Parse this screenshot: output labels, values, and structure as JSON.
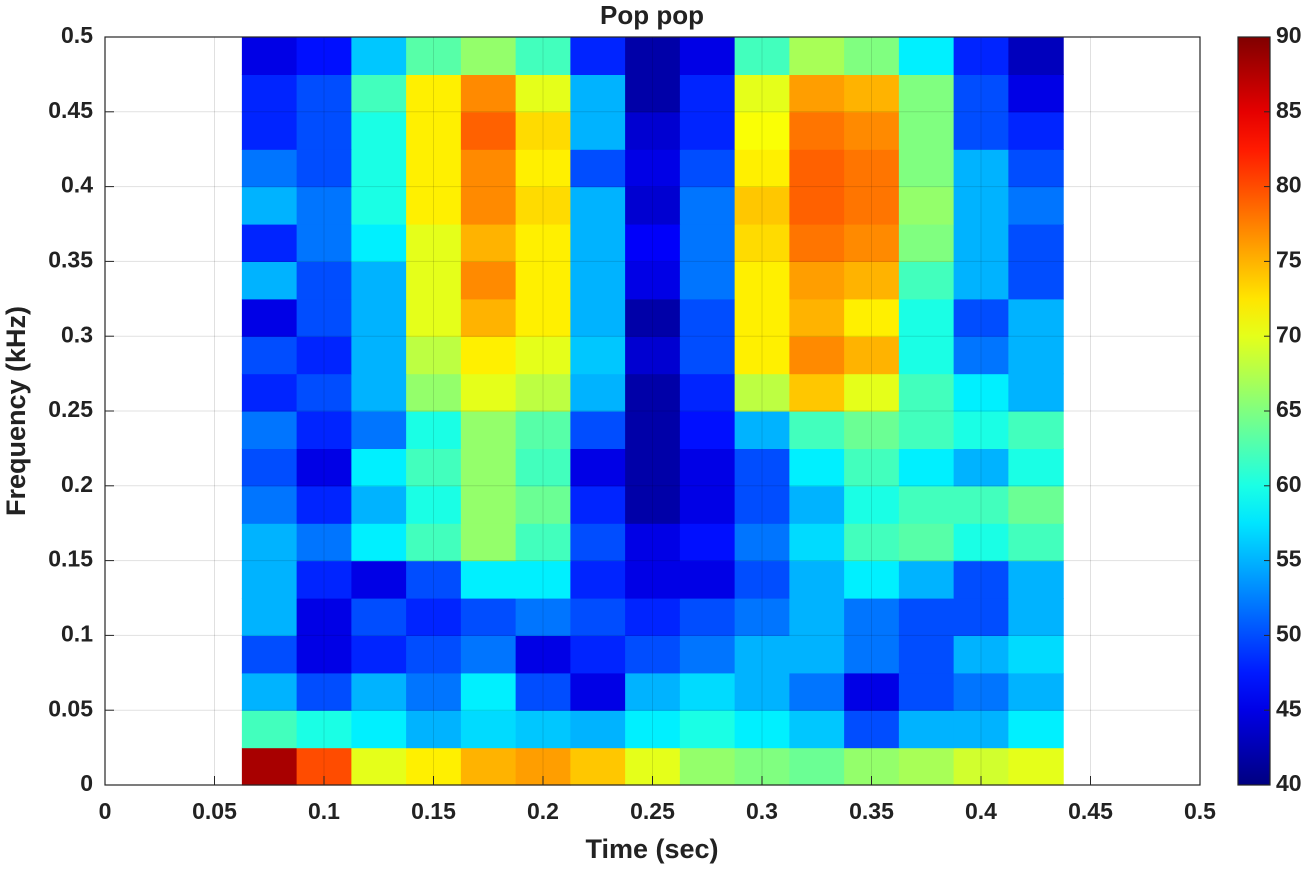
{
  "chart_data": {
    "type": "heatmap",
    "title": "Pop pop",
    "x_label": "Time (sec)",
    "y_label": "Frequency (kHz)",
    "x": [
      0.075,
      0.1,
      0.125,
      0.15,
      0.175,
      0.2,
      0.225,
      0.25,
      0.275,
      0.3,
      0.325,
      0.35,
      0.375,
      0.4,
      0.425
    ],
    "y": [
      0.0125,
      0.0375,
      0.0625,
      0.0875,
      0.1125,
      0.1375,
      0.1625,
      0.1875,
      0.2125,
      0.2375,
      0.2625,
      0.2875,
      0.3125,
      0.3375,
      0.3625,
      0.3875,
      0.4125,
      0.4375,
      0.4625,
      0.4875
    ],
    "z": [
      [
        88,
        80,
        70,
        72,
        75,
        76,
        74,
        70,
        66,
        65,
        64,
        66,
        67,
        69,
        70
      ],
      [
        62,
        60,
        58,
        55,
        57,
        56,
        55,
        58,
        60,
        58,
        56,
        50,
        55,
        55,
        58
      ],
      [
        55,
        50,
        55,
        52,
        58,
        50,
        45,
        55,
        57,
        55,
        52,
        45,
        50,
        52,
        55
      ],
      [
        50,
        45,
        48,
        50,
        52,
        45,
        48,
        50,
        52,
        55,
        55,
        52,
        50,
        55,
        57
      ],
      [
        55,
        45,
        50,
        48,
        50,
        52,
        50,
        48,
        50,
        52,
        55,
        52,
        50,
        50,
        55
      ],
      [
        55,
        48,
        45,
        50,
        58,
        58,
        48,
        45,
        45,
        50,
        55,
        58,
        55,
        50,
        55
      ],
      [
        55,
        52,
        58,
        62,
        66,
        62,
        50,
        45,
        47,
        52,
        57,
        62,
        63,
        60,
        62
      ],
      [
        52,
        48,
        55,
        60,
        66,
        64,
        48,
        42,
        45,
        50,
        55,
        60,
        62,
        62,
        64
      ],
      [
        50,
        45,
        58,
        62,
        66,
        62,
        45,
        42,
        45,
        50,
        58,
        62,
        58,
        55,
        60
      ],
      [
        52,
        48,
        52,
        60,
        66,
        63,
        50,
        42,
        47,
        55,
        62,
        64,
        62,
        60,
        62
      ],
      [
        48,
        50,
        55,
        66,
        70,
        68,
        55,
        42,
        48,
        68,
        74,
        70,
        62,
        58,
        55
      ],
      [
        50,
        48,
        55,
        68,
        72,
        70,
        56,
        44,
        50,
        72,
        77,
        75,
        60,
        52,
        55
      ],
      [
        45,
        50,
        55,
        70,
        75,
        72,
        55,
        42,
        50,
        72,
        75,
        72,
        60,
        50,
        55
      ],
      [
        55,
        50,
        55,
        70,
        77,
        72,
        55,
        45,
        52,
        72,
        76,
        75,
        62,
        55,
        50
      ],
      [
        48,
        52,
        58,
        70,
        75,
        72,
        55,
        46,
        52,
        73,
        78,
        77,
        65,
        55,
        50
      ],
      [
        55,
        52,
        60,
        72,
        77,
        73,
        55,
        44,
        52,
        74,
        79,
        78,
        66,
        55,
        52
      ],
      [
        52,
        50,
        60,
        72,
        77,
        72,
        50,
        45,
        50,
        72,
        79,
        78,
        65,
        55,
        50
      ],
      [
        48,
        50,
        60,
        72,
        79,
        73,
        55,
        44,
        48,
        71,
        78,
        77,
        65,
        50,
        48
      ],
      [
        48,
        50,
        62,
        72,
        77,
        70,
        55,
        42,
        48,
        70,
        76,
        75,
        65,
        50,
        45
      ],
      [
        45,
        47,
        56,
        63,
        66,
        62,
        48,
        42,
        45,
        62,
        67,
        65,
        58,
        48,
        43
      ]
    ],
    "xlim": [
      0,
      0.5
    ],
    "xticks": [
      0,
      0.05,
      0.1,
      0.15,
      0.2,
      0.25,
      0.3,
      0.35,
      0.4,
      0.45,
      0.5
    ],
    "ylim": [
      0,
      0.5
    ],
    "yticks": [
      0,
      0.05,
      0.1,
      0.15,
      0.2,
      0.25,
      0.3,
      0.35,
      0.4,
      0.45,
      0.5
    ],
    "clim": [
      40,
      90
    ],
    "cticks": [
      40,
      45,
      50,
      55,
      60,
      65,
      70,
      75,
      80,
      85,
      90
    ],
    "colormap": "jet",
    "grid": true
  }
}
